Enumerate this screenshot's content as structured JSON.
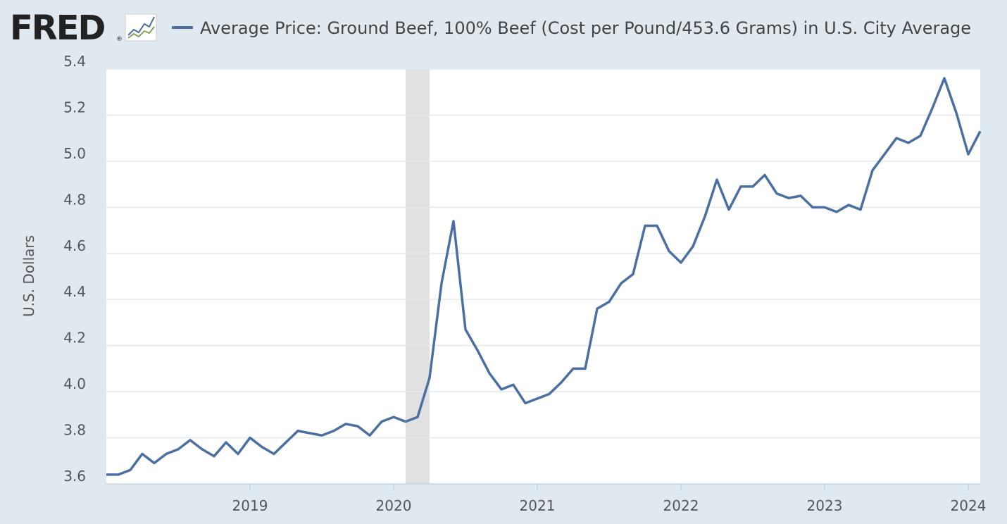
{
  "chart_data": {
    "type": "line",
    "logo": "FRED",
    "logo_mark": "®",
    "ylabel": "U.S. Dollars",
    "x": [
      "2018-01",
      "2018-02",
      "2018-03",
      "2018-04",
      "2018-05",
      "2018-06",
      "2018-07",
      "2018-08",
      "2018-09",
      "2018-10",
      "2018-11",
      "2018-12",
      "2019-01",
      "2019-02",
      "2019-03",
      "2019-04",
      "2019-05",
      "2019-06",
      "2019-07",
      "2019-08",
      "2019-09",
      "2019-10",
      "2019-11",
      "2019-12",
      "2020-01",
      "2020-02",
      "2020-03",
      "2020-04",
      "2020-05",
      "2020-06",
      "2020-07",
      "2020-08",
      "2020-09",
      "2020-10",
      "2020-11",
      "2020-12",
      "2021-01",
      "2021-02",
      "2021-03",
      "2021-04",
      "2021-05",
      "2021-06",
      "2021-07",
      "2021-08",
      "2021-09",
      "2021-10",
      "2021-11",
      "2021-12",
      "2022-01",
      "2022-02",
      "2022-03",
      "2022-04",
      "2022-05",
      "2022-06",
      "2022-07",
      "2022-08",
      "2022-09",
      "2022-10",
      "2022-11",
      "2022-12",
      "2023-01",
      "2023-02",
      "2023-03",
      "2023-04",
      "2023-05",
      "2023-06",
      "2023-07",
      "2023-08",
      "2023-09",
      "2023-10",
      "2023-11",
      "2023-12",
      "2024-01",
      "2024-02"
    ],
    "series": [
      {
        "name": "Average Price: Ground Beef, 100% Beef (Cost per Pound/453.6 Grams) in U.S. City Average",
        "color": "#4b6fa3",
        "values": [
          3.64,
          3.64,
          3.66,
          3.73,
          3.69,
          3.73,
          3.75,
          3.79,
          3.75,
          3.72,
          3.78,
          3.73,
          3.8,
          3.76,
          3.73,
          3.78,
          3.83,
          3.82,
          3.81,
          3.83,
          3.86,
          3.85,
          3.81,
          3.87,
          3.89,
          3.87,
          3.89,
          4.06,
          4.47,
          4.74,
          4.27,
          4.18,
          4.08,
          4.01,
          4.03,
          3.95,
          3.97,
          3.99,
          4.04,
          4.1,
          4.1,
          4.36,
          4.39,
          4.47,
          4.51,
          4.72,
          4.72,
          4.61,
          4.56,
          4.63,
          4.76,
          4.92,
          4.79,
          4.89,
          4.89,
          4.94,
          4.86,
          4.84,
          4.85,
          4.8,
          4.8,
          4.78,
          4.81,
          4.79,
          4.96,
          5.03,
          5.1,
          5.08,
          5.11,
          5.23,
          5.36,
          5.21,
          5.03,
          5.13
        ]
      }
    ],
    "xlim": [
      "2018-01",
      "2024-02"
    ],
    "xticks": [
      2019,
      2020,
      2021,
      2022,
      2023,
      2024
    ],
    "ylim": [
      3.6,
      5.4
    ],
    "yticks": [
      3.6,
      3.8,
      {
        "value": 4,
        "label": "4.0"
      },
      4.2,
      4.4,
      4.6,
      4.8,
      {
        "value": 5,
        "label": "5.0"
      },
      5.2,
      5.4
    ],
    "grid": true,
    "recessions": [
      {
        "start": "2020-02",
        "end": "2020-04"
      }
    ]
  }
}
